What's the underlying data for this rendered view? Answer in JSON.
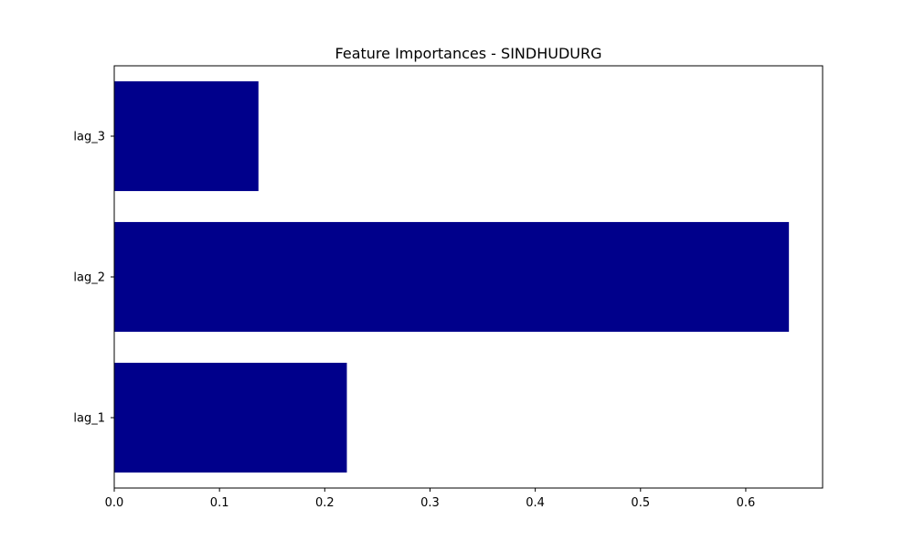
{
  "chart_data": {
    "type": "bar",
    "orientation": "horizontal",
    "title": "Feature Importances - SINDHUDURG",
    "xlabel": "",
    "ylabel": "",
    "categories": [
      "lag_1",
      "lag_2",
      "lag_3"
    ],
    "values": [
      0.221,
      0.641,
      0.137
    ],
    "xlim": [
      0,
      0.673
    ],
    "xticks": [
      0.0,
      0.1,
      0.2,
      0.3,
      0.4,
      0.5,
      0.6
    ],
    "xtick_labels": [
      "0.0",
      "0.1",
      "0.2",
      "0.3",
      "0.4",
      "0.5",
      "0.6"
    ],
    "grid": false,
    "bar_color": "#00008b"
  }
}
